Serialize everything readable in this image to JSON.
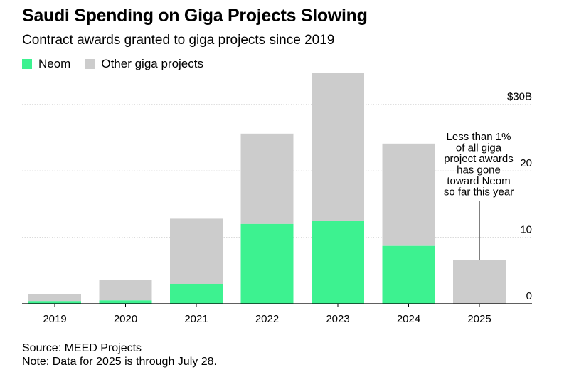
{
  "title": "Saudi Spending on Giga Projects Slowing",
  "subtitle": "Contract awards granted to giga projects since 2019",
  "colors": {
    "neom": "#3df290",
    "other": "#cccccc"
  },
  "legend": [
    {
      "label": "Neom",
      "color": "#3df290"
    },
    {
      "label": "Other giga projects",
      "color": "#cccccc"
    }
  ],
  "chart_data": {
    "type": "bar",
    "stacked": true,
    "categories": [
      "2019",
      "2020",
      "2021",
      "2022",
      "2023",
      "2024",
      "2025"
    ],
    "series": [
      {
        "name": "Neom",
        "values": [
          0.4,
          0.5,
          3.0,
          12.0,
          12.5,
          8.7,
          0.05
        ]
      },
      {
        "name": "Other giga projects",
        "values": [
          1.0,
          3.1,
          9.8,
          13.6,
          22.2,
          15.4,
          6.5
        ]
      }
    ],
    "ylim": [
      0,
      35
    ],
    "yticks": [
      {
        "value": 0,
        "label": "0"
      },
      {
        "value": 10,
        "label": "10"
      },
      {
        "value": 20,
        "label": "20"
      },
      {
        "value": 30,
        "label": "$30B"
      }
    ],
    "grid": true,
    "annotation": {
      "category": "2025",
      "lines": [
        "Less than 1%",
        "of all giga",
        "project awards",
        "has gone",
        "toward Neom",
        "so far this year"
      ]
    }
  },
  "source": "Source: MEED Projects",
  "note": "Note: Data for 2025 is through July 28."
}
